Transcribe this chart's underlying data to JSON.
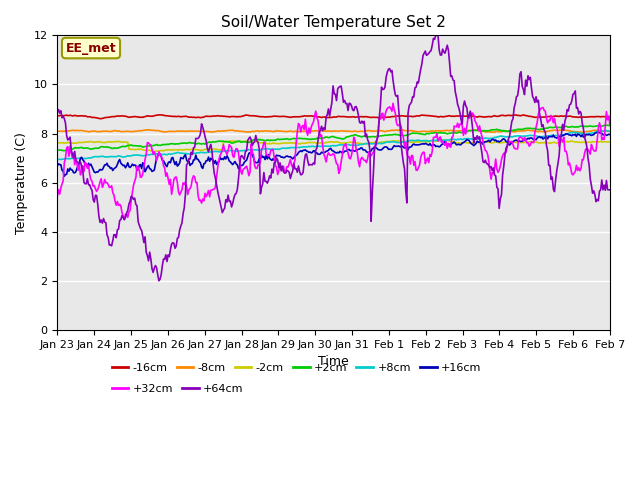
{
  "title": "Soil/Water Temperature Set 2",
  "xlabel": "Time",
  "ylabel": "Temperature (C)",
  "ylim": [
    0,
    12
  ],
  "yticks": [
    0,
    2,
    4,
    6,
    8,
    10,
    12
  ],
  "annotation": "EE_met",
  "plot_bg": "#e8e8e8",
  "fig_bg": "#ffffff",
  "grid_color": "#ffffff",
  "series_order": [
    "-16cm",
    "-8cm",
    "-2cm",
    "+2cm",
    "+8cm",
    "+16cm",
    "+32cm",
    "+64cm"
  ],
  "series_colors": {
    "-16cm": "#cc0000",
    "-8cm": "#ff8800",
    "-2cm": "#cccc00",
    "+2cm": "#00cc00",
    "+8cm": "#00cccc",
    "+16cm": "#0000bb",
    "+32cm": "#ff00ff",
    "+64cm": "#8800bb"
  },
  "lw": 1.2,
  "xtick_labels": [
    "Jan 23",
    "Jan 24",
    "Jan 25",
    "Jan 26",
    "Jan 27",
    "Jan 28",
    "Jan 29",
    "Jan 30",
    "Jan 31",
    "Feb 1",
    "Feb 2",
    "Feb 3",
    "Feb 4",
    "Feb 5",
    "Feb 6",
    "Feb 7"
  ],
  "legend_row1": [
    "-16cm",
    "-8cm",
    "-2cm",
    "+2cm",
    "+8cm",
    "+16cm"
  ],
  "legend_row2": [
    "+32cm",
    "+64cm"
  ]
}
